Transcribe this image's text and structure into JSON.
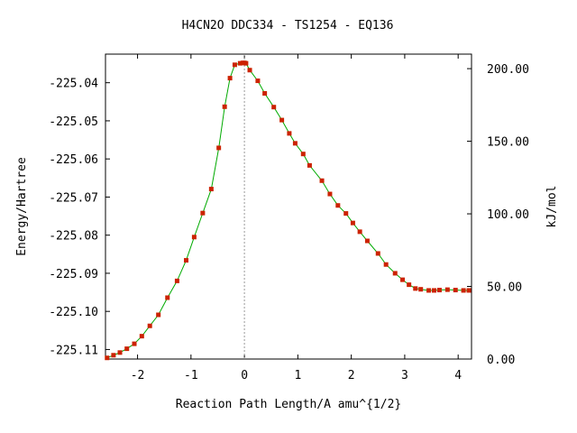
{
  "chart_data": {
    "type": "line",
    "title": "H4CN2O   DDC334 - TS1254 - EQ136",
    "xlabel": "Reaction Path Length/A amu^{1/2}",
    "ylabel": "Energy/Hartree",
    "y2label": "kJ/mol",
    "xlim": [
      -2.6,
      4.25
    ],
    "ylim": [
      -225.1125,
      -225.0325
    ],
    "y2lim": [
      0,
      210
    ],
    "x_ticks": [
      "-2",
      "-1",
      "0",
      "1",
      "2",
      "3",
      "4"
    ],
    "x_tick_values": [
      -2,
      -1,
      0,
      1,
      2,
      3,
      4
    ],
    "y_ticks": [
      "-225.04",
      "-225.05",
      "-225.06",
      "-225.07",
      "-225.08",
      "-225.09",
      "-225.10",
      "-225.11"
    ],
    "y_tick_values": [
      -225.04,
      -225.05,
      -225.06,
      -225.07,
      -225.08,
      -225.09,
      -225.1,
      -225.11
    ],
    "y2_ticks": [
      "200.00",
      "150.00",
      "100.00",
      "50.00",
      "0.00"
    ],
    "y2_tick_values": [
      200,
      150,
      100,
      50,
      0
    ],
    "ts_marker_x": 0,
    "grid": false,
    "colors": {
      "line": "#00aa00",
      "marker": "#cc2200",
      "ts_marker": "#999999"
    },
    "series": [
      {
        "x": [
          -2.57,
          -2.45,
          -2.33,
          -2.2,
          -2.06,
          -1.92,
          -1.77,
          -1.61,
          -1.44,
          -1.26,
          -1.09,
          -0.94,
          -0.78,
          -0.62,
          -0.48,
          -0.37,
          -0.27,
          -0.18,
          -0.08,
          -0.03,
          0.0,
          0.03,
          0.1,
          0.25,
          0.38,
          0.55,
          0.7,
          0.84,
          0.95,
          1.1,
          1.22,
          1.45,
          1.6,
          1.75,
          1.9,
          2.03,
          2.16,
          2.3,
          2.5,
          2.65,
          2.82,
          2.96,
          3.08,
          3.2,
          3.3,
          3.45,
          3.55,
          3.65,
          3.8,
          3.95,
          4.1,
          4.2
        ],
        "y": [
          -225.1122,
          -225.1115,
          -225.1108,
          -225.1098,
          -225.1085,
          -225.1065,
          -225.1038,
          -225.1009,
          -225.0964,
          -225.092,
          -225.0866,
          -225.0805,
          -225.0742,
          -225.0679,
          -225.0571,
          -225.0463,
          -225.0388,
          -225.0353,
          -225.0349,
          -225.0348,
          -225.0348,
          -225.0349,
          -225.0367,
          -225.0395,
          -225.0428,
          -225.0464,
          -225.0498,
          -225.0533,
          -225.0559,
          -225.0587,
          -225.0617,
          -225.0657,
          -225.0692,
          -225.0722,
          -225.0743,
          -225.0768,
          -225.0791,
          -225.0815,
          -225.0848,
          -225.0877,
          -225.09,
          -225.0917,
          -225.093,
          -225.094,
          -225.0942,
          -225.0945,
          -225.0945,
          -225.0944,
          -225.0943,
          -225.0944,
          -225.0945,
          -225.0945
        ]
      }
    ]
  }
}
